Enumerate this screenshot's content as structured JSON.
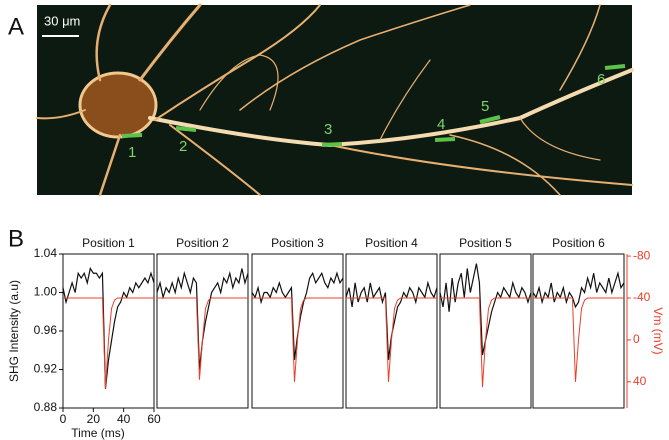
{
  "panel_a": {
    "label": "A",
    "scale_bar": "30 μm",
    "positions": [
      "1",
      "2",
      "3",
      "4",
      "5",
      "6"
    ]
  },
  "panel_b": {
    "label": "B"
  },
  "chart_data": [
    {
      "type": "line",
      "title": "Position 1",
      "xlabel": "Time (ms)",
      "ylabel": "SHG Intensity (a.u)",
      "x": [
        0,
        2,
        4,
        6,
        8,
        10,
        12,
        14,
        16,
        18,
        20,
        22,
        24,
        26,
        28,
        30,
        32,
        34,
        36,
        38,
        40,
        42,
        44,
        46,
        48,
        50,
        52,
        54,
        56,
        58,
        60
      ],
      "xlim": [
        0,
        60
      ],
      "xticks": [
        0,
        20,
        40,
        60
      ],
      "ylim": [
        0.88,
        1.04
      ],
      "yticks": [
        0.88,
        0.92,
        0.96,
        {
          "value": 1,
          "label": "1.00"
        },
        1.04
      ],
      "y2lim": [
        65,
        -82
      ],
      "series": [
        {
          "color": "#111111",
          "values": [
            1.005,
            0.99,
            1.0,
            1.01,
            1.0,
            1.02,
            1.015,
            1.02,
            1.01,
            1.025,
            1.02,
            1.02,
            1.015,
            1.02,
            0.9,
            0.93,
            0.95,
            0.97,
            0.985,
            0.99,
            1.0,
            0.995,
            1.005,
            1.0,
            1.01,
            1.005,
            1.01,
            1.015,
            1.01,
            1.02,
            1.01
          ]
        },
        {
          "color": "#e8402a",
          "axis": "y2",
          "values": [
            -40,
            -40,
            -40,
            -40,
            -40,
            -40,
            -40,
            -40,
            -40,
            -40,
            -40,
            -40,
            -40,
            -40,
            46,
            0,
            -30,
            -38,
            -40,
            -40,
            -40,
            -40,
            -40,
            -40,
            -40,
            -40,
            -40,
            -40,
            -40,
            -40,
            -40
          ]
        }
      ]
    },
    {
      "type": "line",
      "title": "Position 2",
      "x": [
        0,
        2,
        4,
        6,
        8,
        10,
        12,
        14,
        16,
        18,
        20,
        22,
        24,
        26,
        28,
        30,
        32,
        34,
        36,
        38,
        40,
        42,
        44,
        46,
        48,
        50,
        52,
        54,
        56,
        58,
        60
      ],
      "xlim": [
        0,
        60
      ],
      "ylim": [
        0.88,
        1.04
      ],
      "y2lim": [
        65,
        -82
      ],
      "series": [
        {
          "color": "#111111",
          "values": [
            1.0,
            1.01,
            0.995,
            1.005,
            1.0,
            1.01,
            1.0,
            1.015,
            1.005,
            1.02,
            1.01,
            1.0,
            1.015,
            1.01,
            0.92,
            0.95,
            0.97,
            0.985,
            1.0,
            1.005,
            1.01,
            1.0,
            1.015,
            1.01,
            1.02,
            1.005,
            1.015,
            1.01,
            1.025,
            1.01,
            1.02
          ]
        },
        {
          "color": "#e8402a",
          "axis": "y2",
          "values": [
            -40,
            -40,
            -40,
            -40,
            -40,
            -40,
            -40,
            -40,
            -40,
            -40,
            -40,
            -40,
            -40,
            -40,
            38,
            0,
            -30,
            -38,
            -40,
            -40,
            -40,
            -40,
            -40,
            -40,
            -40,
            -40,
            -40,
            -40,
            -40,
            -40,
            -40
          ]
        }
      ]
    },
    {
      "type": "line",
      "title": "Position 3",
      "x": [
        0,
        2,
        4,
        6,
        8,
        10,
        12,
        14,
        16,
        18,
        20,
        22,
        24,
        26,
        28,
        30,
        32,
        34,
        36,
        38,
        40,
        42,
        44,
        46,
        48,
        50,
        52,
        54,
        56,
        58,
        60
      ],
      "xlim": [
        0,
        60
      ],
      "ylim": [
        0.88,
        1.04
      ],
      "y2lim": [
        65,
        -82
      ],
      "series": [
        {
          "color": "#111111",
          "values": [
            1.0,
            0.995,
            1.005,
            0.99,
            1.0,
            1.0,
            0.995,
            1.005,
            1.0,
            1.01,
            1.0,
            0.995,
            1.0,
            1.005,
            0.93,
            0.955,
            0.975,
            0.99,
            1.0,
            1.015,
            1.02,
            1.01,
            1.015,
            1.02,
            1.01,
            1.005,
            1.015,
            1.01,
            1.02,
            1.01,
            1.015
          ]
        },
        {
          "color": "#e8402a",
          "axis": "y2",
          "values": [
            -40,
            -40,
            -40,
            -40,
            -40,
            -40,
            -40,
            -40,
            -40,
            -40,
            -40,
            -40,
            -40,
            -40,
            40,
            0,
            -30,
            -38,
            -40,
            -40,
            -40,
            -40,
            -40,
            -40,
            -40,
            -40,
            -40,
            -40,
            -40,
            -40,
            -40
          ]
        }
      ]
    },
    {
      "type": "line",
      "title": "Position 4",
      "x": [
        0,
        2,
        4,
        6,
        8,
        10,
        12,
        14,
        16,
        18,
        20,
        22,
        24,
        26,
        28,
        30,
        32,
        34,
        36,
        38,
        40,
        42,
        44,
        46,
        48,
        50,
        52,
        54,
        56,
        58,
        60
      ],
      "xlim": [
        0,
        60
      ],
      "ylim": [
        0.88,
        1.04
      ],
      "y2lim": [
        65,
        -82
      ],
      "series": [
        {
          "color": "#111111",
          "values": [
            0.995,
            1.005,
            0.985,
            1.01,
            0.99,
            1.0,
            1.005,
            0.99,
            1.01,
            0.995,
            1.0,
            1.005,
            0.99,
            1.0,
            0.93,
            0.955,
            0.97,
            0.985,
            0.99,
            1.0,
            0.995,
            1.005,
            1.0,
            0.99,
            1.005,
            1.0,
            0.995,
            1.01,
            1.0,
            0.995,
            1.005
          ]
        },
        {
          "color": "#e8402a",
          "axis": "y2",
          "values": [
            -40,
            -40,
            -40,
            -40,
            -40,
            -40,
            -40,
            -40,
            -40,
            -40,
            -40,
            -40,
            -40,
            -40,
            40,
            0,
            -30,
            -38,
            -40,
            -40,
            -40,
            -40,
            -40,
            -40,
            -40,
            -40,
            -40,
            -40,
            -40,
            -40,
            -40
          ]
        }
      ]
    },
    {
      "type": "line",
      "title": "Position 5",
      "x": [
        0,
        2,
        4,
        6,
        8,
        10,
        12,
        14,
        16,
        18,
        20,
        22,
        24,
        26,
        28,
        30,
        32,
        34,
        36,
        38,
        40,
        42,
        44,
        46,
        48,
        50,
        52,
        54,
        56,
        58,
        60
      ],
      "xlim": [
        0,
        60
      ],
      "ylim": [
        0.88,
        1.04
      ],
      "y2lim": [
        65,
        -82
      ],
      "series": [
        {
          "color": "#111111",
          "values": [
            1.0,
            0.985,
            1.01,
            0.98,
            1.015,
            0.99,
            1.01,
            1.02,
            0.995,
            1.025,
            1.0,
            1.015,
            1.03,
            1.01,
            0.935,
            0.95,
            0.965,
            0.98,
            0.99,
            1.0,
            0.995,
            1.005,
            1.0,
            0.995,
            1.01,
            1.0,
            0.995,
            1.005,
            1.0,
            0.99,
            1.0
          ]
        },
        {
          "color": "#e8402a",
          "axis": "y2",
          "values": [
            -40,
            -40,
            -40,
            -40,
            -40,
            -40,
            -40,
            -40,
            -40,
            -40,
            -40,
            -40,
            -40,
            -40,
            45,
            0,
            -30,
            -38,
            -40,
            -40,
            -40,
            -40,
            -40,
            -40,
            -40,
            -40,
            -40,
            -40,
            -40,
            -40,
            -40
          ]
        }
      ]
    },
    {
      "type": "line",
      "title": "Position 6",
      "y2label": "Vm (mV)",
      "x": [
        0,
        2,
        4,
        6,
        8,
        10,
        12,
        14,
        16,
        18,
        20,
        22,
        24,
        26,
        28,
        30,
        32,
        34,
        36,
        38,
        40,
        42,
        44,
        46,
        48,
        50,
        52,
        54,
        56,
        58,
        60
      ],
      "xlim": [
        0,
        60
      ],
      "ylim": [
        0.88,
        1.04
      ],
      "y2lim": [
        65,
        -82
      ],
      "y2ticks": [
        -80,
        -40,
        0,
        40
      ],
      "y2color": "#e8402a",
      "series": [
        {
          "color": "#111111",
          "values": [
            1.0,
            0.995,
            1.005,
            0.99,
            1.0,
            0.995,
            1.01,
            0.99,
            1.0,
            0.995,
            1.005,
            0.99,
            1.0,
            0.995,
            0.985,
            0.99,
            1.005,
            1.0,
            1.015,
            1.005,
            1.02,
            1.0,
            1.01,
            1.005,
            1.0,
            1.015,
            1.0,
            1.01,
            1.02,
            1.005,
            1.01
          ]
        },
        {
          "color": "#e8402a",
          "axis": "y2",
          "values": [
            -40,
            -40,
            -40,
            -40,
            -40,
            -40,
            -40,
            -40,
            -40,
            -40,
            -40,
            -40,
            -40,
            -40,
            40,
            0,
            -30,
            -38,
            -40,
            -40,
            -40,
            -40,
            -40,
            -40,
            -40,
            -40,
            -40,
            -40,
            -40,
            -40,
            -40
          ]
        }
      ]
    }
  ]
}
